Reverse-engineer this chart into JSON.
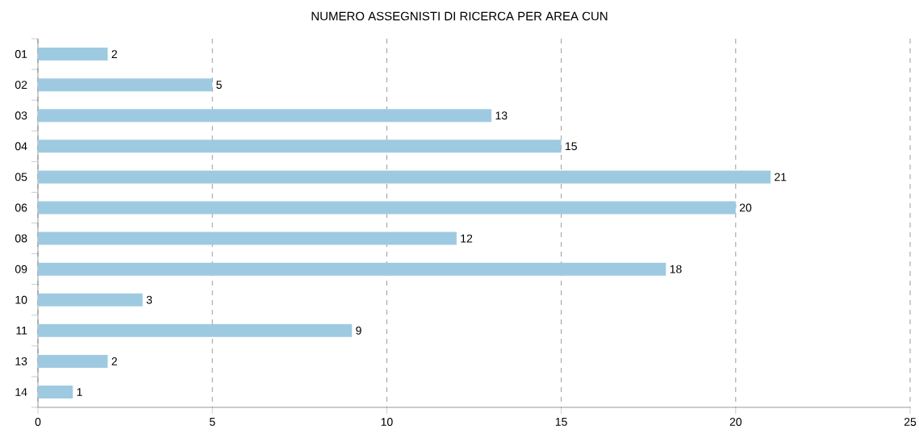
{
  "chart_data": {
    "type": "bar",
    "orientation": "horizontal",
    "title": "NUMERO ASSEGNISTI DI RICERCA PER AREA CUN",
    "categories": [
      "01",
      "02",
      "03",
      "04",
      "05",
      "06",
      "08",
      "09",
      "10",
      "11",
      "13",
      "14"
    ],
    "values": [
      2,
      5,
      13,
      15,
      21,
      20,
      12,
      18,
      3,
      9,
      2,
      1
    ],
    "color": "#9ecae1",
    "data_labels": true,
    "xlim": [
      0,
      25
    ],
    "xticks": [
      0,
      5,
      10,
      15,
      20,
      25
    ],
    "grid": "x",
    "line_style": "dashed"
  }
}
